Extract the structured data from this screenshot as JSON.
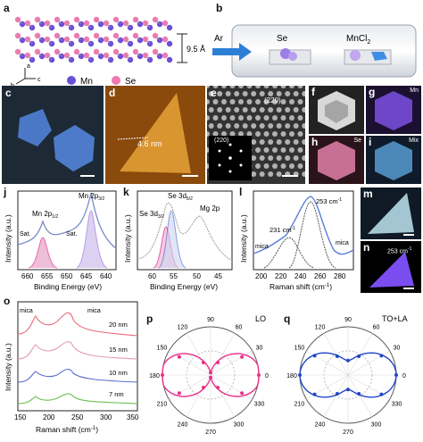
{
  "panel_letters": [
    "a",
    "b",
    "c",
    "d",
    "e",
    "f",
    "g",
    "h",
    "i",
    "j",
    "k",
    "l",
    "m",
    "n",
    "o",
    "p",
    "q"
  ],
  "panel_a": {
    "spacing": "9.5 Å",
    "legend": [
      {
        "symbol": "●",
        "label": "Mn",
        "color": "#6a4fd8"
      },
      {
        "symbol": "●",
        "label": "Se",
        "color": "#f07ab0"
      }
    ],
    "axes": [
      "a",
      "b",
      "c"
    ]
  },
  "panel_b": {
    "carrier": "Ar",
    "reagent1": "Se",
    "reagent2_base": "MnCl",
    "reagent2_sub": "2"
  },
  "panel_d": {
    "height": "4.6 nm"
  },
  "panel_e": {
    "plane_main": "(220)",
    "plane_fft": "(220)"
  },
  "panel_fghi": {
    "g_label": "Mn",
    "h_label": "Se",
    "i_label": "Mix"
  },
  "panel_j": {
    "ylabel": "Intensity (a.u.)",
    "xlabel": "Binding Energy (eV)",
    "xticks": [
      "660",
      "655",
      "650",
      "645",
      "640"
    ],
    "annotations": [
      {
        "base": "Mn 2p",
        "sub": "3/2"
      },
      {
        "base": "Mn 2p",
        "sub": "1/2"
      },
      {
        "text": "Sat."
      },
      {
        "text": "Sat."
      }
    ]
  },
  "panel_k": {
    "ylabel": "Intensity (a.u.)",
    "xlabel": "Binding Energy (eV)",
    "xticks": [
      "60",
      "55",
      "50",
      "45"
    ],
    "annotations": [
      {
        "base": "Se 3d",
        "sub": "3/2"
      },
      {
        "base": "Se 3d",
        "sub": "5/2"
      },
      {
        "text": "Mg 2p"
      }
    ]
  },
  "panel_l": {
    "ylabel": "Intensity (a.u.)",
    "xlabel": "Raman shift (cm",
    "xlabel_sup": "-1",
    "xlabel_end": ")",
    "xticks": [
      "200",
      "220",
      "240",
      "260",
      "280"
    ],
    "annotations": [
      "253 cm",
      "231 cm",
      "mica",
      "mica"
    ],
    "ann_sup": "-1"
  },
  "panel_n": {
    "label": "253 cm",
    "sup": "-1"
  },
  "panel_o": {
    "ylabel": "Intensity (a.u.)",
    "xlabel": "Raman shift (cm",
    "xlabel_sup": "-1",
    "xlabel_end": ")",
    "xticks": [
      "150",
      "200",
      "250",
      "300",
      "350"
    ],
    "thickness_labels": [
      "20 nm",
      "15 nm",
      "10 nm",
      "7 nm"
    ],
    "mica_labels": [
      "mica",
      "mica"
    ]
  },
  "panel_p": {
    "mode": "LO",
    "angles": [
      "90",
      "60",
      "30",
      "0",
      "330",
      "300",
      "270",
      "240",
      "210",
      "180",
      "150",
      "120"
    ],
    "color": "#e8308a"
  },
  "panel_q": {
    "mode": "TO+LA",
    "angles": [
      "90",
      "60",
      "30",
      "0",
      "330",
      "300",
      "270",
      "240",
      "210",
      "180",
      "150",
      "120"
    ],
    "color": "#2246c8"
  },
  "chart_data": [
    {
      "type": "line",
      "panel": "j",
      "xlabel": "Binding Energy (eV)",
      "ylabel": "Intensity (a.u.)",
      "xlim": [
        662,
        636
      ],
      "series": [
        {
          "name": "data",
          "x": [
            662,
            658,
            655,
            653,
            650,
            646,
            643,
            641.5,
            640,
            638,
            636
          ],
          "y": [
            0.28,
            0.32,
            0.62,
            0.4,
            0.37,
            0.45,
            0.48,
            0.96,
            0.55,
            0.3,
            0.22
          ]
        },
        {
          "name": "Mn 2p3/2",
          "x": [
            646,
            643,
            641.5,
            640,
            638
          ],
          "y": [
            0.02,
            0.25,
            0.7,
            0.28,
            0.02
          ]
        },
        {
          "name": "Mn 2p1/2",
          "x": [
            658,
            656,
            654.5,
            653,
            651
          ],
          "y": [
            0.02,
            0.15,
            0.3,
            0.12,
            0.02
          ]
        }
      ]
    },
    {
      "type": "line",
      "panel": "k",
      "xlabel": "Binding Energy (eV)",
      "ylabel": "Intensity (a.u.)",
      "xlim": [
        62,
        43
      ],
      "series": [
        {
          "name": "data",
          "x": [
            62,
            58,
            56,
            55,
            54,
            52,
            50,
            49,
            48,
            46,
            44
          ],
          "y": [
            0.1,
            0.18,
            0.78,
            0.92,
            0.65,
            0.45,
            0.62,
            0.66,
            0.42,
            0.2,
            0.1
          ]
        },
        {
          "name": "Se 3d3/2",
          "x": [
            58,
            56.5,
            55.5,
            54.5,
            53
          ],
          "y": [
            0.02,
            0.3,
            0.55,
            0.3,
            0.02
          ]
        },
        {
          "name": "Se 3d5/2",
          "x": [
            57,
            55.5,
            54.7,
            54,
            52.5
          ],
          "y": [
            0.02,
            0.4,
            0.75,
            0.4,
            0.02
          ]
        }
      ]
    },
    {
      "type": "line",
      "panel": "l",
      "xlabel": "Raman shift (cm-1)",
      "ylabel": "Intensity (a.u.)",
      "xlim": [
        195,
        292
      ],
      "series": [
        {
          "name": "data",
          "x": [
            195,
            205,
            215,
            225,
            231,
            240,
            248,
            253,
            260,
            270,
            280,
            290
          ],
          "y": [
            0.2,
            0.25,
            0.3,
            0.45,
            0.5,
            0.7,
            0.9,
            0.96,
            0.8,
            0.4,
            0.22,
            0.18
          ]
        }
      ]
    },
    {
      "type": "line",
      "panel": "o",
      "xlabel": "Raman shift (cm-1)",
      "ylabel": "Intensity (a.u.)",
      "xlim": [
        150,
        350
      ],
      "series": [
        {
          "name": "20 nm",
          "x": [
            150,
            190,
            200,
            230,
            250,
            280,
            350
          ],
          "y": [
            0.1,
            0.15,
            0.6,
            0.4,
            0.85,
            0.3,
            0.1
          ]
        },
        {
          "name": "15 nm",
          "x": [
            150,
            190,
            200,
            230,
            250,
            280,
            350
          ],
          "y": [
            0.08,
            0.12,
            0.45,
            0.3,
            0.6,
            0.22,
            0.08
          ]
        },
        {
          "name": "10 nm",
          "x": [
            150,
            190,
            200,
            230,
            250,
            280,
            350
          ],
          "y": [
            0.06,
            0.1,
            0.35,
            0.25,
            0.45,
            0.18,
            0.06
          ]
        },
        {
          "name": "7 nm",
          "x": [
            150,
            190,
            200,
            230,
            250,
            280,
            350
          ],
          "y": [
            0.05,
            0.08,
            0.25,
            0.18,
            0.3,
            0.12,
            0.05
          ]
        }
      ]
    },
    {
      "type": "scatter",
      "panel": "p",
      "mode": "LO",
      "angles_deg": [
        0,
        30,
        60,
        90,
        120,
        150,
        180,
        210,
        240,
        270,
        300,
        330
      ],
      "values": [
        1.0,
        0.75,
        0.3,
        0.05,
        0.3,
        0.75,
        1.0,
        0.75,
        0.3,
        0.05,
        0.3,
        0.75
      ]
    },
    {
      "type": "scatter",
      "panel": "q",
      "mode": "TO+LA",
      "angles_deg": [
        0,
        30,
        60,
        90,
        120,
        150,
        180,
        210,
        240,
        270,
        300,
        330
      ],
      "values": [
        1.0,
        0.8,
        0.45,
        0.3,
        0.45,
        0.8,
        1.0,
        0.8,
        0.45,
        0.3,
        0.45,
        0.8
      ]
    }
  ]
}
